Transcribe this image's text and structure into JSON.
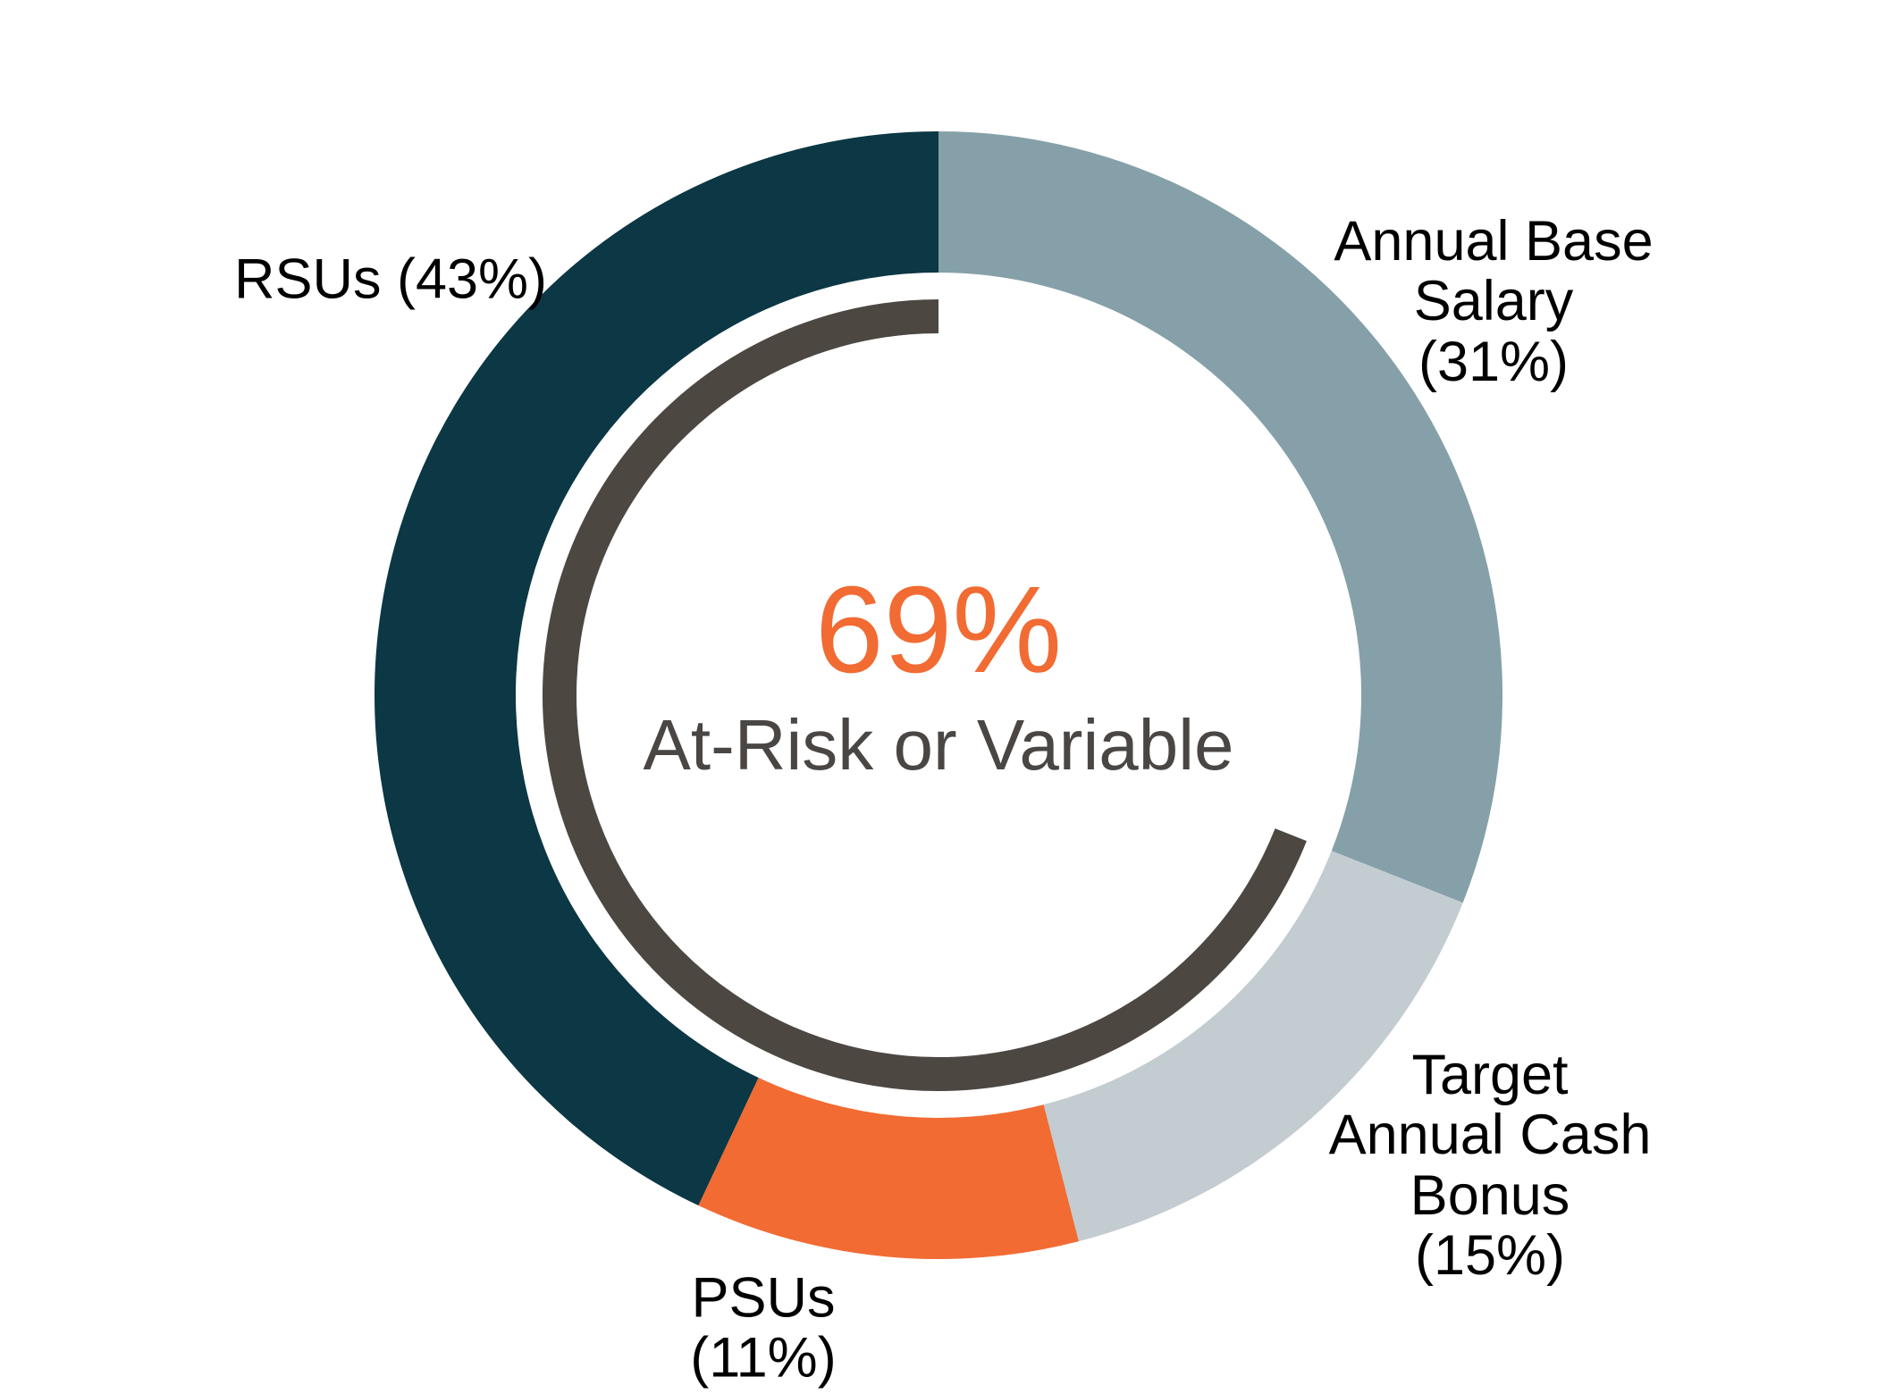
{
  "chart_data": {
    "type": "pie",
    "subtype": "donut",
    "title": "",
    "direction": "clockwise",
    "start_angle_deg": 0,
    "start_position": "12 o'clock",
    "label_color": "#000000",
    "segments": [
      {
        "id": "annual-base-salary",
        "label": "Annual Base Salary",
        "label_display": "Annual Base\nSalary\n(31%)",
        "value": 31,
        "color": "#85A0A8"
      },
      {
        "id": "target-annual-cash-bonus",
        "label": "Target Annual Cash Bonus",
        "label_display": "Target\nAnnual Cash\nBonus\n(15%)",
        "value": 15,
        "color": "#C3CCD1"
      },
      {
        "id": "psus",
        "label": "PSUs",
        "label_display": "PSUs\n(11%)",
        "value": 11,
        "color": "#F16B33"
      },
      {
        "id": "rsus",
        "label": "RSUs",
        "label_display": "RSUs (43%)",
        "value": 43,
        "color": "#0C3744"
      }
    ],
    "center_text": {
      "value": "69%",
      "value_color": "#F16B33",
      "label": "At-Risk or Variable",
      "label_color": "#4A4644"
    },
    "at_risk_arc": {
      "percent": 69,
      "covers": [
        "Target Annual Cash Bonus",
        "PSUs",
        "RSUs"
      ],
      "color": "#4D4742",
      "ends_at_position": "12 o'clock"
    }
  }
}
